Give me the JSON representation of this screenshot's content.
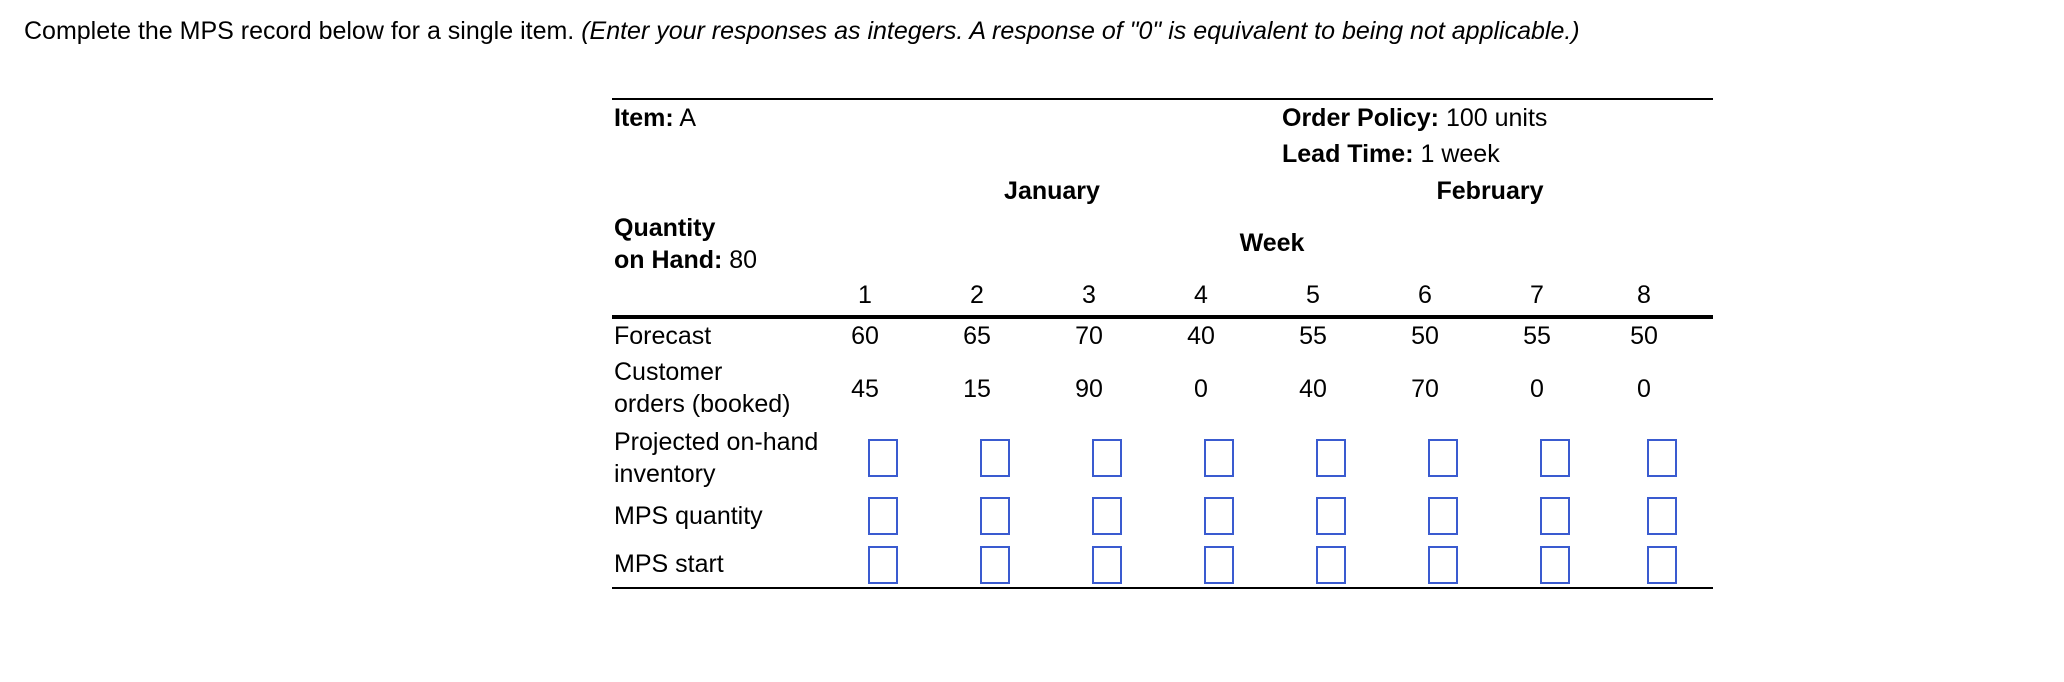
{
  "instructions": {
    "text": "Complete the MPS record below for a single item.",
    "note": "(Enter your responses as integers. A response of \"0\" is equivalent to being not applicable.)"
  },
  "record": {
    "item_label": "Item:",
    "item_value": "A",
    "order_policy_label": "Order Policy:",
    "order_policy_value": "100 units",
    "lead_time_label": "Lead Time:",
    "lead_time_value": "1 week",
    "quantity_label_line1": "Quantity",
    "quantity_label_line2": "on Hand:",
    "quantity_value": "80",
    "months": [
      "January",
      "February"
    ],
    "week_header": "Week",
    "weeks": [
      "1",
      "2",
      "3",
      "4",
      "5",
      "6",
      "7",
      "8"
    ],
    "rows": {
      "forecast": {
        "label": "Forecast",
        "values": [
          "60",
          "65",
          "70",
          "40",
          "55",
          "50",
          "55",
          "50"
        ]
      },
      "customer_orders": {
        "label_line1": "Customer",
        "label_line2": "orders (booked)",
        "values": [
          "45",
          "15",
          "90",
          "0",
          "40",
          "70",
          "0",
          "0"
        ]
      },
      "projected_on_hand": {
        "label_line1": "Projected on-hand",
        "label_line2": "inventory"
      },
      "mps_quantity": {
        "label": "MPS quantity"
      },
      "mps_start": {
        "label": "MPS start"
      }
    }
  },
  "colors": {
    "input_border": "#3a5bd0"
  }
}
